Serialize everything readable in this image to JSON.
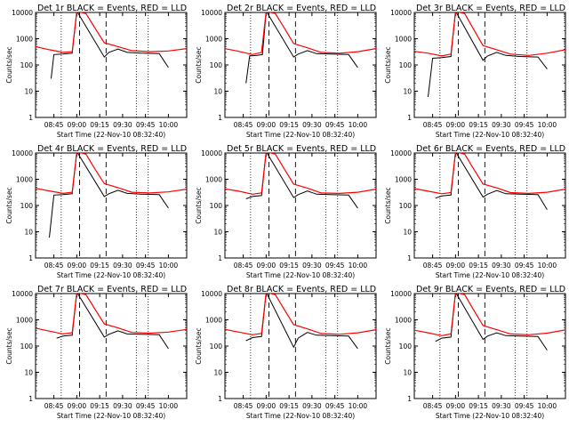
{
  "chart_data": {
    "type": "line",
    "layout": "3x3 grid of log-scale time series panels",
    "x_tick_labels": [
      "08:45",
      "09:00",
      "09:15",
      "09:30",
      "09:45",
      "10:00"
    ],
    "x_ticks_hours": [
      8.75,
      9.0,
      9.25,
      9.5,
      9.75,
      10.0
    ],
    "xlim_hours": [
      8.55,
      10.2
    ],
    "xlabel": "Start Time (22-Nov-10 08:32:40)",
    "ylabel": "Counts/sec",
    "y_scale": "log",
    "ylim": [
      1,
      10000
    ],
    "y_tick_labels": [
      "1",
      "10",
      "100",
      "1000",
      "10000"
    ],
    "vertical_markers": {
      "dotted_hours": [
        8.83,
        9.78
      ],
      "dashed_hours": [
        9.03,
        9.32
      ],
      "dotted2_hours": [
        9.65
      ]
    },
    "series_colors": {
      "events": "#000000",
      "lld": "#ff0000"
    },
    "panels": [
      {
        "title": "Det 1r BLACK = Events, RED = LLD",
        "lld": [
          [
            8.55,
            500
          ],
          [
            8.7,
            380
          ],
          [
            8.85,
            300
          ],
          [
            8.95,
            320
          ],
          [
            9.0,
            12000
          ],
          [
            9.1,
            9000
          ],
          [
            9.2,
            2500
          ],
          [
            9.3,
            700
          ],
          [
            9.45,
            500
          ],
          [
            9.6,
            350
          ],
          [
            9.8,
            320
          ],
          [
            10.0,
            340
          ],
          [
            10.2,
            420
          ]
        ],
        "events": [
          [
            8.72,
            30
          ],
          [
            8.75,
            250
          ],
          [
            8.85,
            260
          ],
          [
            8.95,
            280
          ],
          [
            9.0,
            12000
          ],
          [
            9.3,
            200
          ],
          [
            9.35,
            300
          ],
          [
            9.45,
            400
          ],
          [
            9.55,
            300
          ],
          [
            9.7,
            280
          ],
          [
            9.9,
            270
          ],
          [
            10.0,
            80
          ]
        ]
      },
      {
        "title": "Det 2r BLACK = Events, RED = LLD",
        "lld": [
          [
            8.55,
            420
          ],
          [
            8.7,
            330
          ],
          [
            8.85,
            250
          ],
          [
            8.95,
            300
          ],
          [
            9.0,
            12000
          ],
          [
            9.1,
            9000
          ],
          [
            9.2,
            2500
          ],
          [
            9.3,
            650
          ],
          [
            9.45,
            450
          ],
          [
            9.6,
            300
          ],
          [
            9.8,
            280
          ],
          [
            10.0,
            320
          ],
          [
            10.2,
            420
          ]
        ],
        "events": [
          [
            8.78,
            20
          ],
          [
            8.82,
            220
          ],
          [
            8.9,
            230
          ],
          [
            8.96,
            250
          ],
          [
            9.0,
            12000
          ],
          [
            9.3,
            200
          ],
          [
            9.35,
            260
          ],
          [
            9.45,
            350
          ],
          [
            9.55,
            270
          ],
          [
            9.7,
            260
          ],
          [
            9.9,
            250
          ],
          [
            10.0,
            80
          ]
        ]
      },
      {
        "title": "Det 3r BLACK = Events, RED = LLD",
        "lld": [
          [
            8.55,
            330
          ],
          [
            8.7,
            280
          ],
          [
            8.85,
            220
          ],
          [
            8.95,
            260
          ],
          [
            9.0,
            12000
          ],
          [
            9.1,
            9000
          ],
          [
            9.2,
            2200
          ],
          [
            9.3,
            550
          ],
          [
            9.45,
            380
          ],
          [
            9.6,
            260
          ],
          [
            9.8,
            230
          ],
          [
            10.0,
            280
          ],
          [
            10.2,
            380
          ]
        ],
        "events": [
          [
            8.7,
            6
          ],
          [
            8.75,
            180
          ],
          [
            8.85,
            190
          ],
          [
            8.95,
            210
          ],
          [
            9.0,
            12000
          ],
          [
            9.3,
            150
          ],
          [
            9.35,
            220
          ],
          [
            9.45,
            300
          ],
          [
            9.55,
            230
          ],
          [
            9.7,
            210
          ],
          [
            9.9,
            200
          ],
          [
            10.0,
            70
          ]
        ]
      },
      {
        "title": "Det 4r BLACK = Events, RED = LLD",
        "lld": [
          [
            8.55,
            450
          ],
          [
            8.7,
            360
          ],
          [
            8.85,
            290
          ],
          [
            8.95,
            320
          ],
          [
            9.0,
            12000
          ],
          [
            9.1,
            9000
          ],
          [
            9.2,
            2400
          ],
          [
            9.3,
            680
          ],
          [
            9.45,
            480
          ],
          [
            9.6,
            320
          ],
          [
            9.8,
            300
          ],
          [
            10.0,
            330
          ],
          [
            10.2,
            420
          ]
        ],
        "events": [
          [
            8.7,
            6
          ],
          [
            8.75,
            250
          ],
          [
            8.85,
            260
          ],
          [
            8.95,
            280
          ],
          [
            9.0,
            12000
          ],
          [
            9.3,
            220
          ],
          [
            9.35,
            280
          ],
          [
            9.45,
            380
          ],
          [
            9.55,
            290
          ],
          [
            9.7,
            270
          ],
          [
            9.9,
            260
          ],
          [
            10.0,
            80
          ]
        ]
      },
      {
        "title": "Det 5r BLACK = Events, RED = LLD",
        "lld": [
          [
            8.55,
            430
          ],
          [
            8.7,
            350
          ],
          [
            8.85,
            270
          ],
          [
            8.95,
            300
          ],
          [
            9.0,
            12000
          ],
          [
            9.1,
            9000
          ],
          [
            9.2,
            2400
          ],
          [
            9.3,
            650
          ],
          [
            9.45,
            460
          ],
          [
            9.6,
            300
          ],
          [
            9.8,
            290
          ],
          [
            10.0,
            320
          ],
          [
            10.2,
            420
          ]
        ],
        "events": [
          [
            8.78,
            180
          ],
          [
            8.85,
            220
          ],
          [
            8.95,
            240
          ],
          [
            9.0,
            12000
          ],
          [
            9.3,
            200
          ],
          [
            9.35,
            260
          ],
          [
            9.45,
            360
          ],
          [
            9.55,
            270
          ],
          [
            9.7,
            260
          ],
          [
            9.9,
            250
          ],
          [
            10.0,
            80
          ]
        ]
      },
      {
        "title": "Det 6r BLACK = Events, RED = LLD",
        "lld": [
          [
            8.55,
            440
          ],
          [
            8.7,
            350
          ],
          [
            8.85,
            280
          ],
          [
            8.95,
            310
          ],
          [
            9.0,
            12000
          ],
          [
            9.1,
            9000
          ],
          [
            9.2,
            2400
          ],
          [
            9.3,
            660
          ],
          [
            9.45,
            470
          ],
          [
            9.6,
            310
          ],
          [
            9.8,
            290
          ],
          [
            10.0,
            320
          ],
          [
            10.2,
            420
          ]
        ],
        "events": [
          [
            8.78,
            190
          ],
          [
            8.85,
            230
          ],
          [
            8.95,
            250
          ],
          [
            9.0,
            12000
          ],
          [
            9.3,
            210
          ],
          [
            9.35,
            270
          ],
          [
            9.45,
            370
          ],
          [
            9.55,
            280
          ],
          [
            9.7,
            270
          ],
          [
            9.9,
            260
          ],
          [
            10.0,
            70
          ]
        ]
      },
      {
        "title": "Det 7r BLACK = Events, RED = LLD",
        "lld": [
          [
            8.55,
            480
          ],
          [
            8.7,
            370
          ],
          [
            8.85,
            290
          ],
          [
            8.95,
            320
          ],
          [
            9.0,
            12000
          ],
          [
            9.1,
            9000
          ],
          [
            9.2,
            2500
          ],
          [
            9.3,
            700
          ],
          [
            9.45,
            490
          ],
          [
            9.6,
            330
          ],
          [
            9.8,
            310
          ],
          [
            10.0,
            340
          ],
          [
            10.2,
            430
          ]
        ],
        "events": [
          [
            8.78,
            200
          ],
          [
            8.85,
            240
          ],
          [
            8.95,
            260
          ],
          [
            9.0,
            12000
          ],
          [
            9.3,
            220
          ],
          [
            9.35,
            280
          ],
          [
            9.45,
            380
          ],
          [
            9.55,
            290
          ],
          [
            9.7,
            280
          ],
          [
            9.9,
            270
          ],
          [
            10.0,
            80
          ]
        ]
      },
      {
        "title": "Det 8r BLACK = Events, RED = LLD",
        "lld": [
          [
            8.55,
            430
          ],
          [
            8.7,
            340
          ],
          [
            8.85,
            270
          ],
          [
            8.95,
            300
          ],
          [
            9.0,
            12000
          ],
          [
            9.1,
            9000
          ],
          [
            9.2,
            2400
          ],
          [
            9.3,
            650
          ],
          [
            9.45,
            450
          ],
          [
            9.6,
            300
          ],
          [
            9.8,
            280
          ],
          [
            10.0,
            320
          ],
          [
            10.2,
            420
          ]
        ],
        "events": [
          [
            8.78,
            160
          ],
          [
            8.85,
            210
          ],
          [
            8.95,
            230
          ],
          [
            9.0,
            12000
          ],
          [
            9.3,
            90
          ],
          [
            9.35,
            200
          ],
          [
            9.45,
            330
          ],
          [
            9.55,
            260
          ],
          [
            9.7,
            250
          ],
          [
            9.9,
            240
          ],
          [
            10.0,
            80
          ]
        ]
      },
      {
        "title": "Det 9r BLACK = Events, RED = LLD",
        "lld": [
          [
            8.55,
            400
          ],
          [
            8.7,
            320
          ],
          [
            8.85,
            250
          ],
          [
            8.95,
            290
          ],
          [
            9.0,
            12000
          ],
          [
            9.1,
            9000
          ],
          [
            9.2,
            2300
          ],
          [
            9.3,
            600
          ],
          [
            9.45,
            420
          ],
          [
            9.6,
            290
          ],
          [
            9.8,
            270
          ],
          [
            10.0,
            310
          ],
          [
            10.2,
            410
          ]
        ],
        "events": [
          [
            8.78,
            150
          ],
          [
            8.85,
            200
          ],
          [
            8.95,
            220
          ],
          [
            9.0,
            12000
          ],
          [
            9.3,
            180
          ],
          [
            9.35,
            240
          ],
          [
            9.45,
            320
          ],
          [
            9.55,
            250
          ],
          [
            9.7,
            240
          ],
          [
            9.9,
            230
          ],
          [
            10.0,
            70
          ]
        ]
      }
    ]
  }
}
